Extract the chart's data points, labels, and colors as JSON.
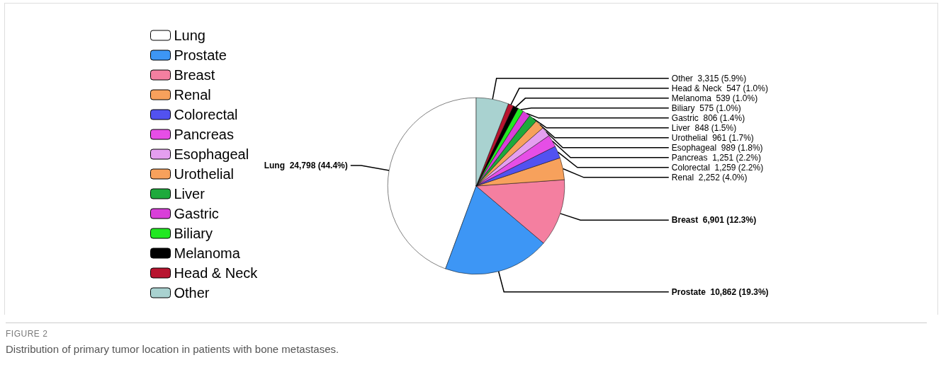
{
  "chart_data": {
    "type": "pie",
    "categories": [
      "Lung",
      "Prostate",
      "Breast",
      "Renal",
      "Colorectal",
      "Pancreas",
      "Esophageal",
      "Urothelial",
      "Liver",
      "Gastric",
      "Biliary",
      "Melanoma",
      "Head & Neck",
      "Other"
    ],
    "values": [
      24798,
      10862,
      6901,
      2252,
      1259,
      1251,
      989,
      961,
      848,
      806,
      575,
      539,
      547,
      3315
    ],
    "value_labels": [
      "24,798 (44.4%)",
      "10,862 (19.3%)",
      "6,901 (12.3%)",
      "2,252 (4.0%)",
      "1,259 (2.2%)",
      "1,251 (2.2%)",
      "989 (1.8%)",
      "961 (1.7%)",
      "848 (1.5%)",
      "806 (1.4%)",
      "575 (1.0%)",
      "539 (1.0%)",
      "547 (1.0%)",
      "3,315 (5.9%)"
    ],
    "colors": [
      "#ffffff",
      "#3d96f5",
      "#f47fa0",
      "#f7a15c",
      "#5252f0",
      "#e64ee6",
      "#e59ff0",
      "#f7a15c",
      "#1eaa3c",
      "#d93fd9",
      "#22e822",
      "#000000",
      "#b8142f",
      "#a9d2d0"
    ],
    "legend": "left",
    "annotations": [
      "FIGURE 2",
      "Distribution of primary tumor location in patients with bone metastases."
    ]
  }
}
